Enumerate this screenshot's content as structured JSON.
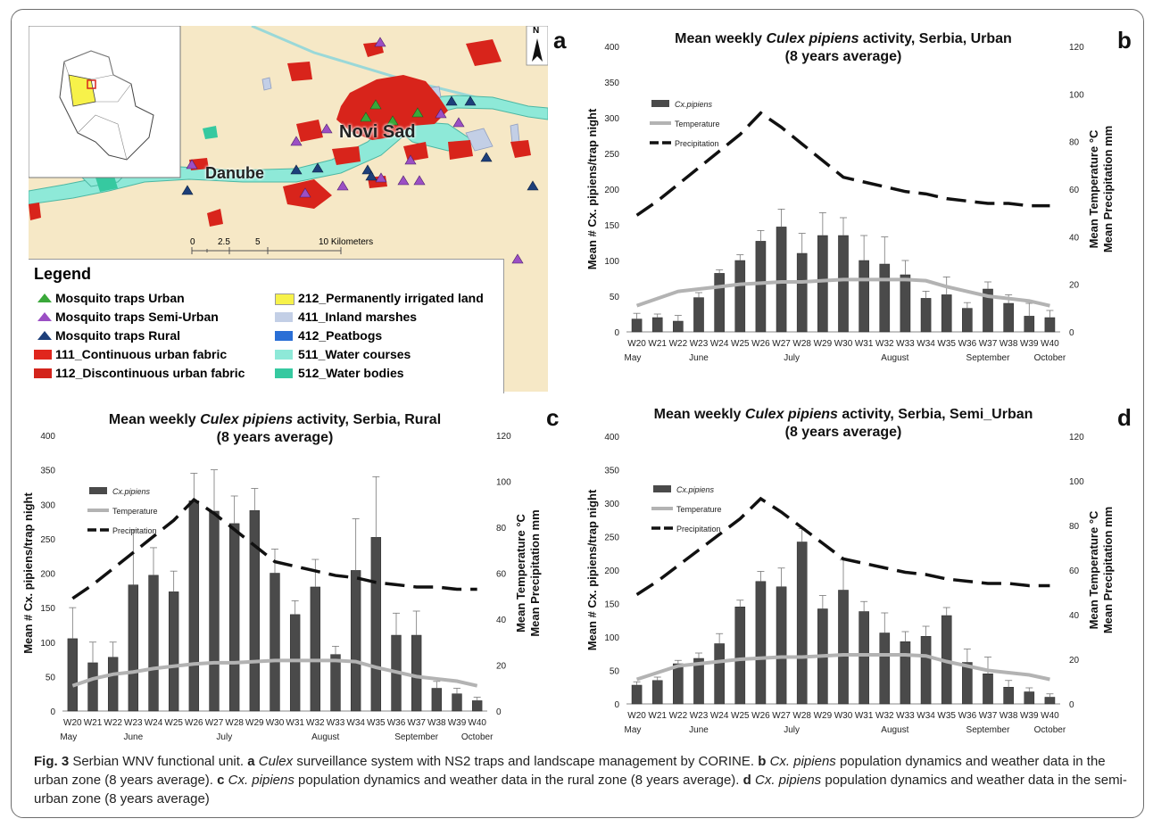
{
  "panels": {
    "a": "a",
    "b": "b",
    "c": "c",
    "d": "d"
  },
  "map": {
    "north_label": "N",
    "place_city": "Novi Sad",
    "place_river": "Danube",
    "scale_ticks": [
      "0",
      "2.5",
      "5",
      "10 Kilometers"
    ],
    "legend_title": "Legend",
    "legend_items": [
      {
        "label": "Mosquito traps Urban",
        "color": "#3aa83a",
        "shape": "triangle"
      },
      {
        "label": "Mosquito traps Semi-Urban",
        "color": "#9b4fc4",
        "shape": "triangle"
      },
      {
        "label": "Mosquito traps Rural",
        "color": "#1d3f7a",
        "shape": "triangle"
      },
      {
        "label": "111_Continuous urban fabric",
        "color": "#e0261d",
        "shape": "rect"
      },
      {
        "label": "112_Discontinuous urban fabric",
        "color": "#d3241c",
        "shape": "rect"
      },
      {
        "label": "212_Permanently irrigated land",
        "color": "#f7f24a",
        "shape": "rect"
      },
      {
        "label": "411_Inland marshes",
        "color": "#c3cfe6",
        "shape": "rect"
      },
      {
        "label": "412_Peatbogs",
        "color": "#2a6fd6",
        "shape": "rect"
      },
      {
        "label": "511_Water courses",
        "color": "#8ee9d8",
        "shape": "rect"
      },
      {
        "label": "512_Water bodies",
        "color": "#36c9a0",
        "shape": "rect"
      }
    ],
    "colors": {
      "background": "#f6e8c6",
      "urban": "#d8241b",
      "water": "#8ee9d8"
    }
  },
  "shared": {
    "weeks": [
      "W20",
      "W21",
      "W22",
      "W23",
      "W24",
      "W25",
      "W26",
      "W27",
      "W28",
      "W29",
      "W30",
      "W31",
      "W32",
      "W33",
      "W34",
      "W35",
      "W36",
      "W37",
      "W38",
      "W39",
      "W40"
    ],
    "months": [
      "May",
      "June",
      "July",
      "August",
      "September",
      "October"
    ],
    "legend": [
      "Cx.pipiens",
      "Temperature",
      "Precipitation"
    ],
    "y_left_label": "Mean # Cx. pipiens/trap night",
    "y_right_label_1": "Mean Temperature °C",
    "y_right_label_2": "Mean Precipitation mm"
  },
  "chart_data": [
    {
      "id": "b",
      "type": "bar",
      "title_prefix": "Mean weekly ",
      "title_italic": "Culex pipiens",
      "title_suffix": " activity, Serbia, Urban",
      "title_line2": "(8 years average)",
      "categories": [
        "W20",
        "W21",
        "W22",
        "W23",
        "W24",
        "W25",
        "W26",
        "W27",
        "W28",
        "W29",
        "W30",
        "W31",
        "W32",
        "W33",
        "W34",
        "W35",
        "W36",
        "W37",
        "W38",
        "W39",
        "W40"
      ],
      "ylim": [
        0,
        400
      ],
      "y2lim": [
        0,
        120
      ],
      "series": [
        {
          "name": "Cx.pipiens",
          "axis": "left",
          "values": [
            18,
            20,
            15,
            48,
            82,
            100,
            127,
            147,
            110,
            135,
            135,
            100,
            95,
            80,
            47,
            52,
            33,
            60,
            40,
            22,
            20
          ],
          "errors": [
            8,
            5,
            8,
            7,
            5,
            8,
            15,
            25,
            28,
            32,
            25,
            35,
            38,
            20,
            10,
            25,
            8,
            10,
            12,
            18,
            10
          ]
        },
        {
          "name": "Temperature",
          "axis": "right",
          "values": [
            11,
            14,
            17,
            18,
            19,
            20,
            20.5,
            21,
            21,
            21.5,
            22,
            22,
            22,
            22,
            21.5,
            19,
            17,
            15,
            14,
            13,
            11
          ]
        },
        {
          "name": "Precipitation",
          "axis": "right",
          "values": [
            49,
            55,
            62,
            69,
            76,
            83,
            92,
            86,
            79,
            72,
            65,
            63,
            61,
            59,
            58,
            56,
            55,
            54,
            54,
            53,
            53
          ]
        }
      ]
    },
    {
      "id": "c",
      "type": "bar",
      "title_prefix": "Mean weekly ",
      "title_italic": "Culex pipiens",
      "title_suffix": " activity, Serbia, Rural",
      "title_line2": "(8 years average)",
      "categories": [
        "W20",
        "W21",
        "W22",
        "W23",
        "W24",
        "W25",
        "W26",
        "W27",
        "W28",
        "W29",
        "W30",
        "W31",
        "W32",
        "W33",
        "W34",
        "W35",
        "W36",
        "W37",
        "W38",
        "W39",
        "W40"
      ],
      "ylim": [
        0,
        400
      ],
      "y2lim": [
        0,
        120
      ],
      "series": [
        {
          "name": "Cx.pipiens",
          "axis": "left",
          "values": [
            105,
            70,
            78,
            183,
            197,
            173,
            305,
            290,
            272,
            291,
            200,
            140,
            180,
            82,
            204,
            252,
            110,
            110,
            33,
            25,
            15
          ],
          "errors": [
            45,
            30,
            22,
            80,
            40,
            30,
            40,
            60,
            40,
            32,
            35,
            20,
            40,
            12,
            75,
            88,
            32,
            35,
            10,
            8,
            5
          ]
        },
        {
          "name": "Temperature",
          "axis": "right",
          "values": [
            11,
            14,
            16,
            17,
            18.5,
            19.5,
            20.5,
            21,
            21,
            21.5,
            22,
            22,
            22,
            22,
            21.5,
            19,
            17,
            15,
            14,
            13,
            11
          ]
        },
        {
          "name": "Precipitation",
          "axis": "right",
          "values": [
            49,
            55,
            62,
            69,
            76,
            83,
            92,
            86,
            79,
            72,
            65,
            63,
            61,
            59,
            58,
            56,
            55,
            54,
            54,
            53,
            53
          ]
        }
      ]
    },
    {
      "id": "d",
      "type": "bar",
      "title_prefix": "Mean weekly ",
      "title_italic": "Culex pipiens",
      "title_suffix": " activity, Serbia, Semi_Urban",
      "title_line2": "(8 years average)",
      "categories": [
        "W20",
        "W21",
        "W22",
        "W23",
        "W24",
        "W25",
        "W26",
        "W27",
        "W28",
        "W29",
        "W30",
        "W31",
        "W32",
        "W33",
        "W34",
        "W35",
        "W36",
        "W37",
        "W38",
        "W39",
        "W40"
      ],
      "ylim": [
        0,
        400
      ],
      "y2lim": [
        0,
        120
      ],
      "series": [
        {
          "name": "Cx.pipiens",
          "axis": "left",
          "values": [
            28,
            35,
            60,
            68,
            90,
            145,
            183,
            175,
            242,
            142,
            170,
            138,
            106,
            93,
            101,
            132,
            62,
            45,
            25,
            18,
            10
          ],
          "errors": [
            5,
            5,
            5,
            8,
            15,
            10,
            15,
            28,
            20,
            20,
            45,
            15,
            30,
            15,
            15,
            12,
            20,
            25,
            10,
            6,
            5
          ]
        },
        {
          "name": "Temperature",
          "axis": "right",
          "values": [
            11,
            14,
            17,
            18,
            19,
            20,
            20.5,
            21,
            21,
            21.5,
            22,
            22,
            22,
            22,
            21.5,
            19,
            17,
            15,
            14,
            13,
            11
          ]
        },
        {
          "name": "Precipitation",
          "axis": "right",
          "values": [
            49,
            55,
            62,
            69,
            76,
            83,
            92,
            86,
            79,
            72,
            65,
            63,
            61,
            59,
            58,
            56,
            55,
            54,
            54,
            53,
            53
          ]
        }
      ]
    }
  ],
  "caption": {
    "fig": "Fig. 3",
    "t1": " Serbian WNV functional unit. ",
    "a": "a",
    "t2": " ",
    "culex": "Culex",
    "t3": " surveillance system with NS2 traps and landscape management by CORINE. ",
    "b": "b",
    "t4": " ",
    "cxp1": "Cx. pipiens",
    "t5": " population dynamics and weather data in the urban zone (8 years average). ",
    "c": "c",
    "t6": " ",
    "cxp2": "Cx. pipiens",
    "t7": " population dynamics and weather data in the rural zone (8 years average). ",
    "d": "d",
    "t8": " ",
    "cxp3": "Cx. pipiens",
    "t9": " population dynamics and weather data in the semi-urban zone (8 years average)"
  }
}
